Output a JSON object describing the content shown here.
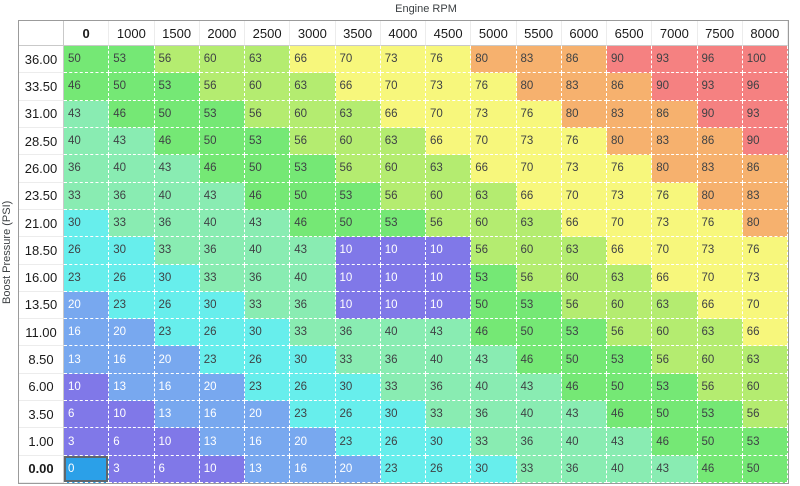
{
  "title": "Engine RPM",
  "y_axis_label": "Boost Pressure (PSI)",
  "table": {
    "column_headers": [
      "0",
      "1000",
      "1500",
      "2000",
      "2500",
      "3000",
      "3500",
      "4000",
      "4500",
      "5000",
      "5500",
      "6000",
      "6500",
      "7000",
      "7500",
      "8000"
    ],
    "bold_column_header": "0",
    "row_headers": [
      "36.00",
      "33.50",
      "31.00",
      "28.50",
      "26.00",
      "23.50",
      "21.00",
      "18.50",
      "16.00",
      "13.50",
      "11.00",
      "8.50",
      "6.00",
      "3.50",
      "1.00",
      "0.00"
    ],
    "bold_row_header": "0.00",
    "rows": [
      [
        50,
        53,
        56,
        60,
        63,
        66,
        70,
        73,
        76,
        80,
        83,
        86,
        90,
        93,
        96,
        100
      ],
      [
        46,
        50,
        53,
        56,
        60,
        63,
        66,
        70,
        73,
        76,
        80,
        83,
        86,
        90,
        93,
        96
      ],
      [
        43,
        46,
        50,
        53,
        56,
        60,
        63,
        66,
        70,
        73,
        76,
        80,
        83,
        86,
        90,
        93
      ],
      [
        40,
        43,
        46,
        50,
        53,
        56,
        60,
        63,
        66,
        70,
        73,
        76,
        80,
        83,
        86,
        90
      ],
      [
        36,
        40,
        43,
        46,
        50,
        53,
        56,
        60,
        63,
        66,
        70,
        73,
        76,
        80,
        83,
        86
      ],
      [
        33,
        36,
        40,
        43,
        46,
        50,
        53,
        56,
        60,
        63,
        66,
        70,
        73,
        76,
        80,
        83
      ],
      [
        30,
        33,
        36,
        40,
        43,
        46,
        50,
        53,
        56,
        60,
        63,
        66,
        70,
        73,
        76,
        80
      ],
      [
        26,
        30,
        33,
        36,
        40,
        43,
        10,
        10,
        10,
        56,
        60,
        63,
        66,
        70,
        73,
        76
      ],
      [
        23,
        26,
        30,
        33,
        36,
        40,
        10,
        10,
        10,
        53,
        56,
        60,
        63,
        66,
        70,
        73
      ],
      [
        20,
        23,
        26,
        30,
        33,
        36,
        10,
        10,
        10,
        50,
        53,
        56,
        60,
        63,
        66,
        70
      ],
      [
        16,
        20,
        23,
        26,
        30,
        33,
        36,
        40,
        43,
        46,
        50,
        53,
        56,
        60,
        63,
        66
      ],
      [
        13,
        16,
        20,
        23,
        26,
        30,
        33,
        36,
        40,
        43,
        46,
        50,
        53,
        56,
        60,
        63
      ],
      [
        10,
        13,
        16,
        20,
        23,
        26,
        30,
        33,
        36,
        40,
        43,
        46,
        50,
        53,
        56,
        60
      ],
      [
        6,
        10,
        13,
        16,
        20,
        23,
        26,
        30,
        33,
        36,
        40,
        43,
        46,
        50,
        53,
        56
      ],
      [
        3,
        6,
        10,
        13,
        16,
        20,
        23,
        26,
        30,
        33,
        36,
        40,
        43,
        46,
        50,
        53
      ],
      [
        0,
        3,
        6,
        10,
        13,
        16,
        20,
        23,
        26,
        30,
        33,
        36,
        40,
        43,
        46,
        50
      ]
    ]
  },
  "color_scale": {
    "buckets": [
      {
        "max": 12,
        "bg": "#8078e8",
        "text": "#ffffff"
      },
      {
        "max": 22,
        "bg": "#78a8ef",
        "text": "#ffffff"
      },
      {
        "max": 32,
        "bg": "#67eeec",
        "text": "#3f4245"
      },
      {
        "max": 45,
        "bg": "#89ecb2",
        "text": "#3f4245"
      },
      {
        "max": 55,
        "bg": "#75e875",
        "text": "#3f4245"
      },
      {
        "max": 65,
        "bg": "#b4ec70",
        "text": "#3f4245"
      },
      {
        "max": 78,
        "bg": "#f7f77c",
        "text": "#3f4245"
      },
      {
        "max": 88,
        "bg": "#f6b16e",
        "text": "#3f4245"
      },
      {
        "max": 100,
        "bg": "#f58181",
        "text": "#3f4245"
      }
    ]
  },
  "selection": {
    "row_header": "0.00",
    "col_header": "0",
    "row_index": 15,
    "col_index": 0,
    "bg": "#2ba0e8",
    "text": "#ffffff",
    "border": "#60666b"
  }
}
